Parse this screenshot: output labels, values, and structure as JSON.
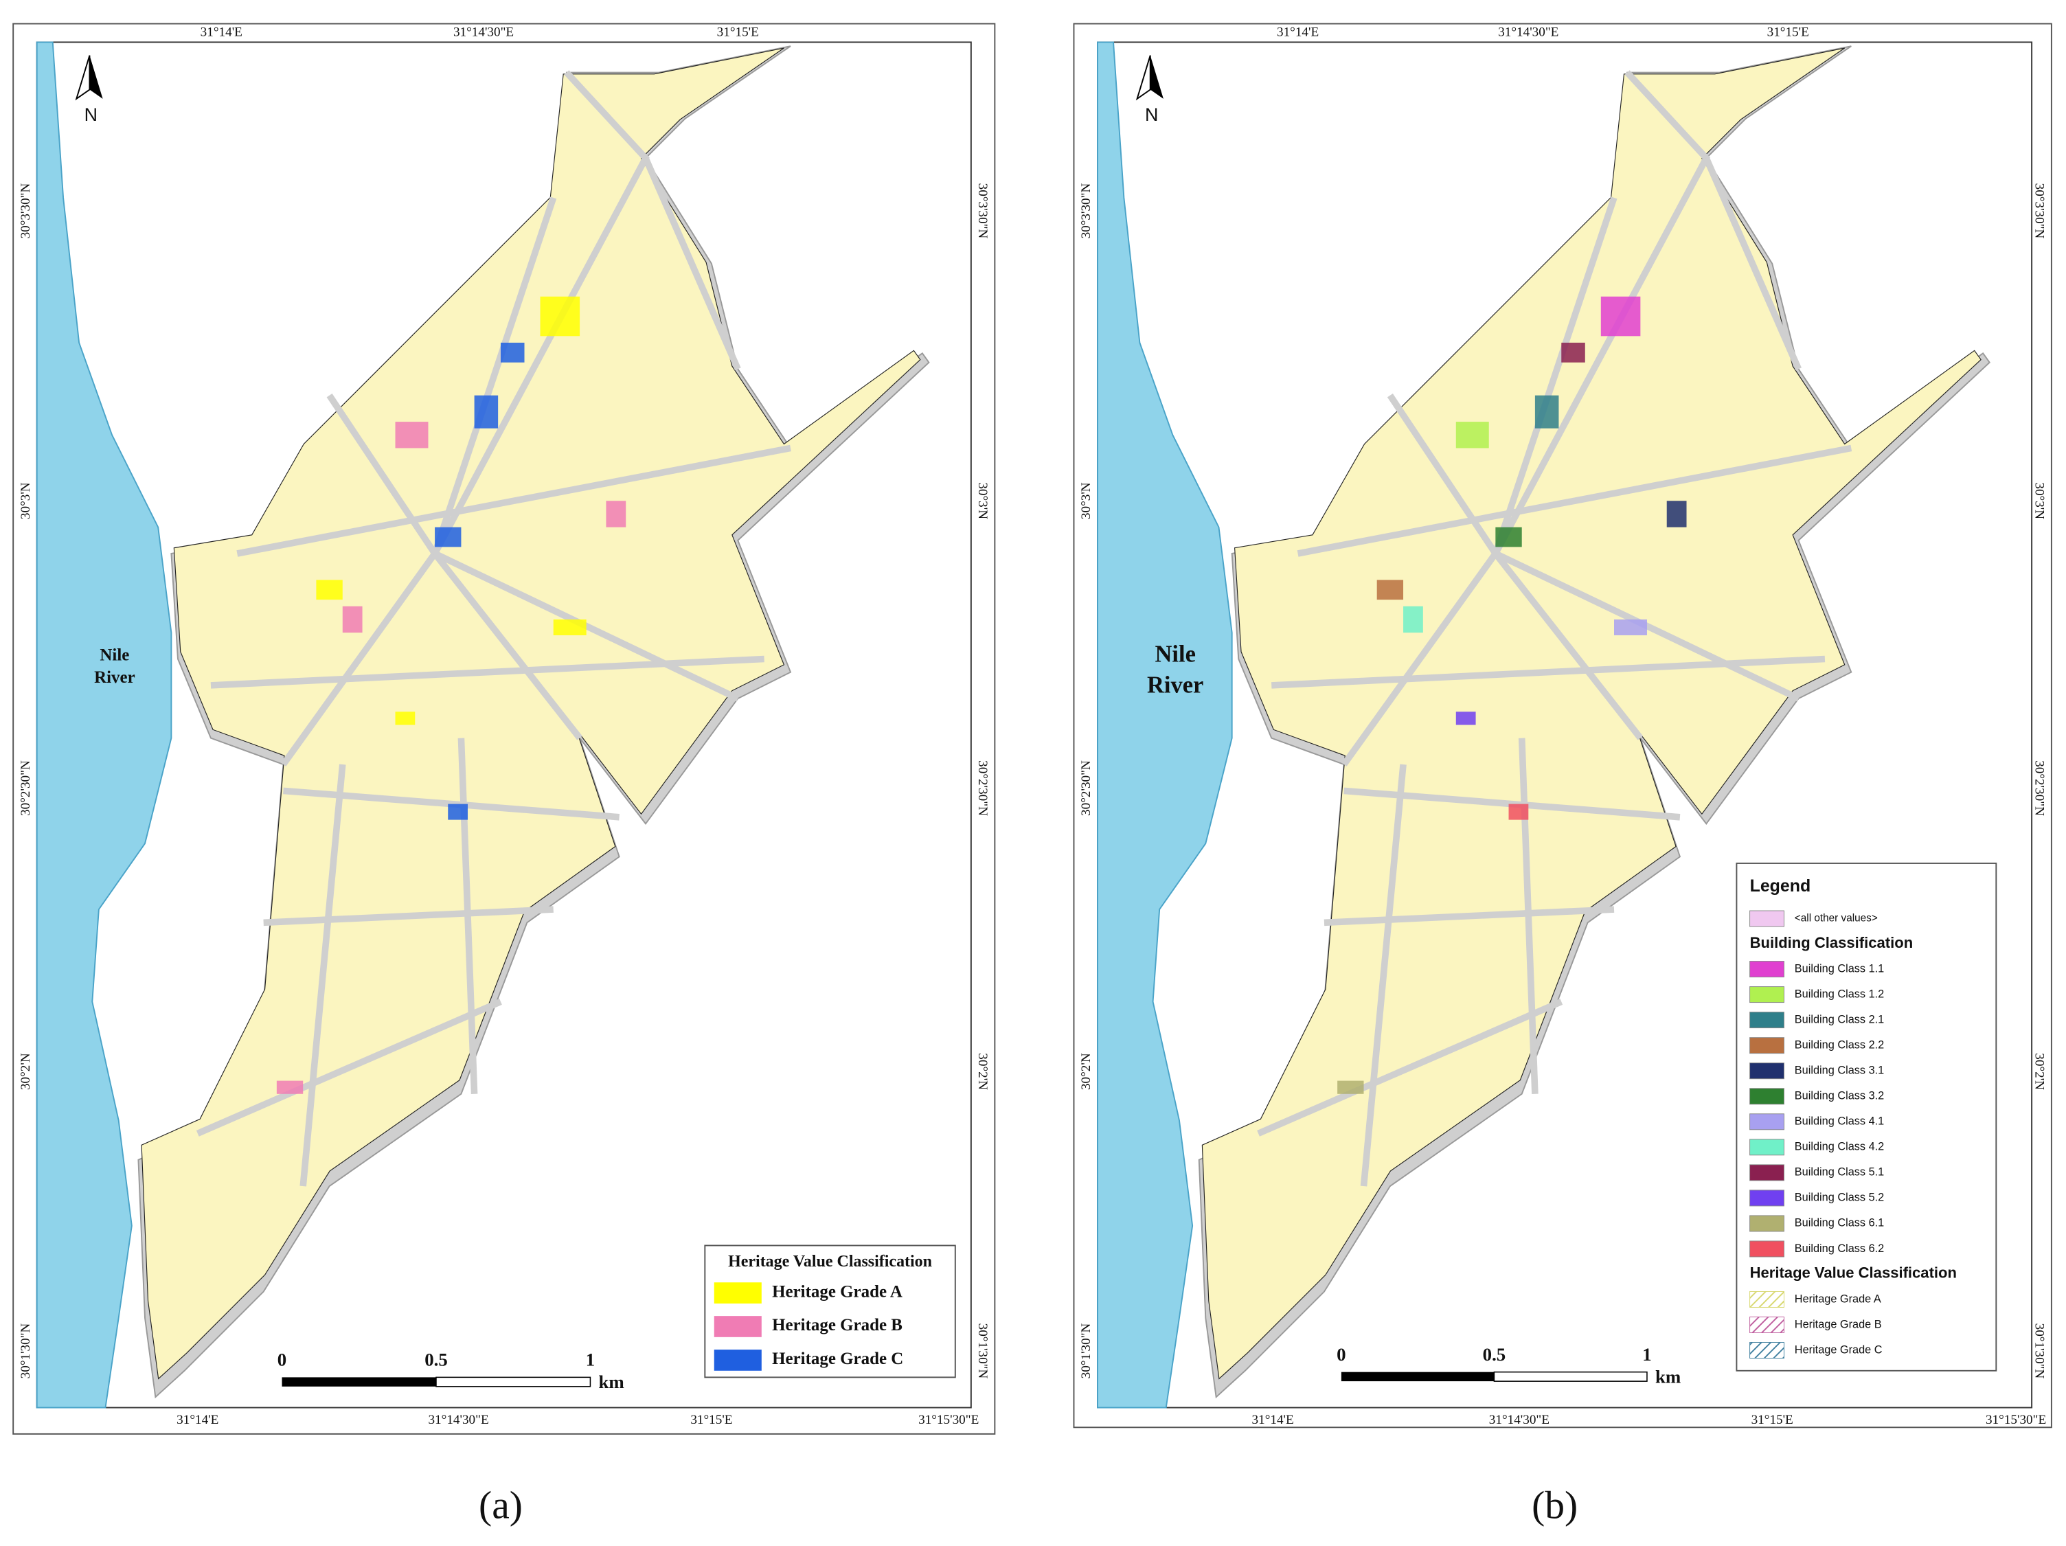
{
  "panels": [
    {
      "caption": "(a)",
      "north": "N",
      "river_label": [
        "Nile",
        "River"
      ],
      "top_ticks": [
        "31°14'E",
        "31°14'30\"E",
        "31°15'E"
      ],
      "bottom_ticks": [
        "31°14'E",
        "31°14'30\"E",
        "31°15'E",
        "31°15'30\"E"
      ],
      "left_ticks": [
        "30°3'30\"N",
        "30°3'N",
        "30°2'30\"N",
        "30°2'N",
        "30°1'30\"N"
      ],
      "right_ticks": [
        "30°3'30\"N",
        "30°3'N",
        "30°2'30\"N",
        "30°2'N",
        "30°1'30\"N"
      ],
      "scale": {
        "labels": [
          "0",
          "0.5",
          "1"
        ],
        "unit": "km"
      },
      "legend": {
        "sections": [
          {
            "title": "Heritage Value Classification",
            "items": [
              {
                "label": "Heritage Grade A",
                "color": "#ffff00"
              },
              {
                "label": "Heritage Grade B",
                "color": "#f07cb4"
              },
              {
                "label": "Heritage Grade C",
                "color": "#1f5fe0"
              }
            ]
          }
        ]
      }
    },
    {
      "caption": "(b)",
      "north": "N",
      "river_label": [
        "Nile",
        "River"
      ],
      "top_ticks": [
        "31°14'E",
        "31°14'30\"E",
        "31°15'E"
      ],
      "bottom_ticks": [
        "31°14'E",
        "31°14'30\"E",
        "31°15'E",
        "31°15'30\"E"
      ],
      "left_ticks": [
        "30°3'30\"N",
        "30°3'N",
        "30°2'30\"N",
        "30°2'N",
        "30°1'30\"N"
      ],
      "right_ticks": [
        "30°3'30\"N",
        "30°3'N",
        "30°2'30\"N",
        "30°2'N",
        "30°1'30\"N"
      ],
      "scale": {
        "labels": [
          "0",
          "0.5",
          "1"
        ],
        "unit": "km"
      },
      "legend": {
        "title": "Legend",
        "other": {
          "label": "<all other values>",
          "color": "#f0c8f0"
        },
        "sections": [
          {
            "title": "Building Classification",
            "items": [
              {
                "label": "Building Class 1.1",
                "color": "#e040d0"
              },
              {
                "label": "Building Class 1.2",
                "color": "#b0f050"
              },
              {
                "label": "Building Class 2.1",
                "color": "#2f7f8a"
              },
              {
                "label": "Building Class 2.2",
                "color": "#b87040"
              },
              {
                "label": "Building Class 3.1",
                "color": "#20306e"
              },
              {
                "label": "Building Class 3.2",
                "color": "#2e8030"
              },
              {
                "label": "Building Class 4.1",
                "color": "#a8a0f0"
              },
              {
                "label": "Building Class 4.2",
                "color": "#70f0c8"
              },
              {
                "label": "Building Class 5.1",
                "color": "#8a2050"
              },
              {
                "label": "Building Class 5.2",
                "color": "#7040f0"
              },
              {
                "label": "Building Class 6.1",
                "color": "#b0b070"
              },
              {
                "label": "Building Class 6.2",
                "color": "#f05060"
              }
            ]
          },
          {
            "title": "Heritage Value Classification",
            "hatched": true,
            "items": [
              {
                "label": "Heritage Grade A",
                "color": "#d8d870"
              },
              {
                "label": "Heritage Grade B",
                "color": "#c060a0"
              },
              {
                "label": "Heritage Grade C",
                "color": "#4080a0"
              }
            ]
          }
        ]
      }
    }
  ]
}
